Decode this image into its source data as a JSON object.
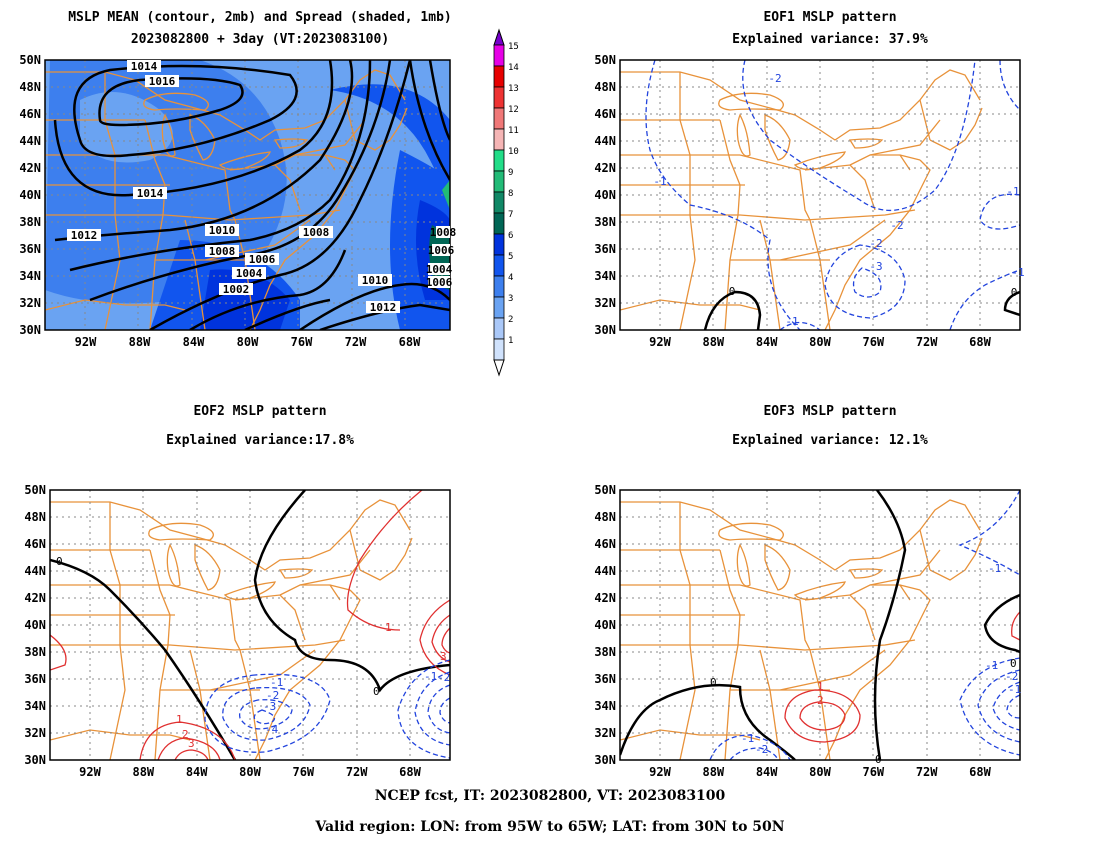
{
  "panels": [
    {
      "title1": "MSLP MEAN (contour, 2mb) and Spread (shaded, 1mb)",
      "title2": "2023082800 + 3day (VT:2023083100)"
    },
    {
      "title1": "EOF1 MSLP pattern",
      "title2": "Explained variance: 37.9%"
    },
    {
      "title1": "EOF2 MSLP pattern",
      "title2": "Explained variance:17.8%"
    },
    {
      "title1": "EOF3 MSLP pattern",
      "title2": "Explained variance: 12.1%"
    }
  ],
  "map": {
    "lon_range": [
      -95,
      -65
    ],
    "lat_range": [
      30,
      50
    ],
    "lat_labels": [
      "50N",
      "48N",
      "46N",
      "44N",
      "42N",
      "40N",
      "38N",
      "36N",
      "34N",
      "32N",
      "30N"
    ],
    "lon_labels": [
      "92W",
      "88W",
      "84W",
      "80W",
      "76W",
      "72W",
      "68W"
    ],
    "colors": {
      "borders": "#e8923a",
      "grid": "#888888",
      "positive": "#e03030",
      "negative": "#2244dd",
      "zero": "#000000"
    }
  },
  "colorbar": {
    "labels": [
      "15",
      "14",
      "13",
      "12",
      "11",
      "10",
      "9",
      "8",
      "7",
      "6",
      "5",
      "4",
      "3",
      "2",
      "1"
    ],
    "colors": [
      "#7700cc",
      "#e600e6",
      "#e60000",
      "#ee3333",
      "#f07878",
      "#f5b5b5",
      "#22dd88",
      "#22bb77",
      "#118866",
      "#006655",
      "#0033dd",
      "#1155ee",
      "#3d7fee",
      "#6aa3f2",
      "#aac8f8",
      "#d0e2fc"
    ]
  },
  "mean_contour_labels": [
    "1014",
    "1016",
    "1014",
    "1012",
    "1010",
    "1008",
    "1008",
    "1006",
    "1004",
    "1002",
    "1010",
    "1012",
    "1006",
    "1004",
    "1006",
    "1008"
  ],
  "eof1_labels": [
    "-2",
    "-1",
    "-1",
    "-2",
    "-2",
    "-3",
    "-1",
    "0",
    "-1",
    "0"
  ],
  "eof2_labels": [
    "0",
    "-1",
    "-2",
    "-3",
    "-4",
    "1",
    "2",
    "3",
    "1",
    "-1",
    "-2",
    "3",
    "0"
  ],
  "eof3_labels": [
    "0",
    "0",
    "-1",
    "-1",
    "-2",
    "1",
    "2",
    "-1",
    "-2",
    "-1",
    "0"
  ],
  "footer": {
    "line1": "NCEP fcst, IT: 2023082800, VT: 2023083100",
    "line2": "Valid region: LON: from 95W to 65W; LAT: from 30N to 50N"
  }
}
